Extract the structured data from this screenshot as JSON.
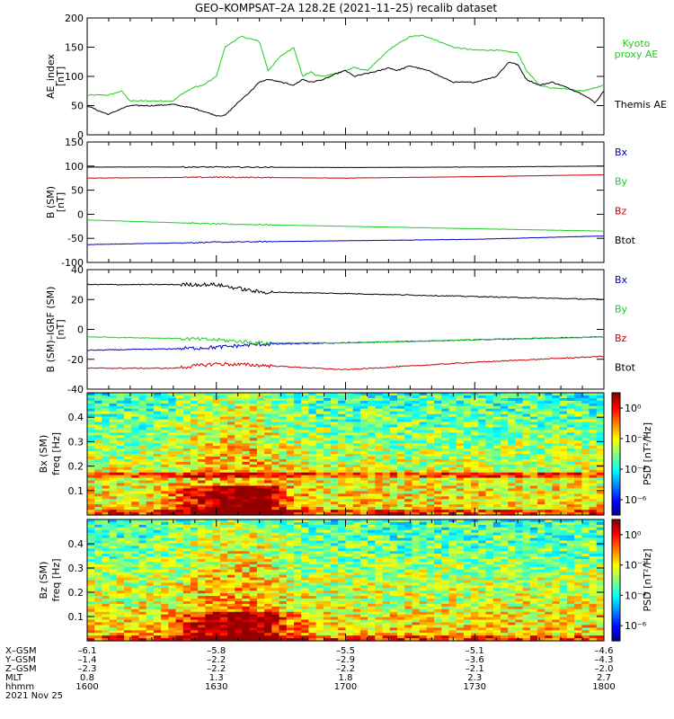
{
  "chart_data": [
    {
      "type": "line",
      "title": "GEO–KOMPSAT–2A 128.2E (2021–11–25) recalib dataset",
      "ylabel": "AE_index",
      "yunit": "[nT]",
      "ylim": [
        0,
        200
      ],
      "yticks": [
        0,
        50,
        100,
        150,
        200
      ],
      "series": [
        {
          "name": "Kyoto proxy AE",
          "color": "#22cc22",
          "x": [
            1600,
            1605,
            1608,
            1610,
            1615,
            1620,
            1622,
            1625,
            1627,
            1630,
            1632,
            1635,
            1636,
            1640,
            1642,
            1645,
            1648,
            1650,
            1652,
            1653,
            1655,
            1700,
            1702,
            1705,
            1708,
            1710,
            1712,
            1715,
            1718,
            1720,
            1725,
            1730,
            1735,
            1740,
            1742,
            1745,
            1748,
            1750,
            1755,
            1800
          ],
          "values": [
            68,
            68,
            75,
            58,
            58,
            58,
            70,
            82,
            85,
            100,
            150,
            165,
            168,
            160,
            110,
            135,
            150,
            100,
            108,
            102,
            100,
            110,
            115,
            110,
            130,
            145,
            155,
            168,
            170,
            165,
            150,
            145,
            145,
            140,
            110,
            85,
            80,
            80,
            75,
            85
          ]
        },
        {
          "name": "Themis AE",
          "color": "#000000",
          "x": [
            1600,
            1603,
            1605,
            1608,
            1610,
            1615,
            1620,
            1625,
            1630,
            1632,
            1635,
            1638,
            1640,
            1642,
            1645,
            1648,
            1650,
            1652,
            1655,
            1658,
            1700,
            1702,
            1705,
            1708,
            1710,
            1712,
            1715,
            1718,
            1720,
            1722,
            1725,
            1730,
            1735,
            1738,
            1740,
            1742,
            1745,
            1748,
            1750,
            1755,
            1758,
            1800
          ],
          "values": [
            50,
            40,
            35,
            45,
            50,
            50,
            52,
            45,
            33,
            33,
            55,
            75,
            90,
            95,
            90,
            85,
            95,
            90,
            95,
            105,
            110,
            100,
            105,
            110,
            115,
            110,
            118,
            112,
            108,
            100,
            90,
            90,
            100,
            125,
            120,
            95,
            85,
            90,
            85,
            70,
            55,
            75
          ]
        }
      ],
      "legend": "right"
    },
    {
      "type": "line",
      "ylabel": "B (SM)",
      "yunit": "[nT]",
      "ylim": [
        -100,
        150
      ],
      "yticks": [
        -100,
        -50,
        0,
        50,
        100,
        150
      ],
      "series": [
        {
          "name": "Bx",
          "color": "#0000cc",
          "x": [
            1600,
            1630,
            1700,
            1730,
            1800
          ],
          "values": [
            -63,
            -58,
            -55,
            -52,
            -45
          ]
        },
        {
          "name": "By",
          "color": "#22cc22",
          "x": [
            1600,
            1630,
            1700,
            1730,
            1800
          ],
          "values": [
            -12,
            -20,
            -25,
            -30,
            -35
          ]
        },
        {
          "name": "Bz",
          "color": "#cc0000",
          "x": [
            1600,
            1630,
            1700,
            1730,
            1800
          ],
          "values": [
            75,
            77,
            75,
            78,
            82
          ]
        },
        {
          "name": "Btot",
          "color": "#000000",
          "x": [
            1600,
            1630,
            1700,
            1730,
            1800
          ],
          "values": [
            98,
            98,
            97,
            98,
            100
          ]
        }
      ],
      "legend": "right"
    },
    {
      "type": "line",
      "ylabel": "B (SM)–IGRF (SM)",
      "yunit": "[nT]",
      "ylim": [
        -40,
        40
      ],
      "yticks": [
        -40,
        -20,
        0,
        20,
        40
      ],
      "series": [
        {
          "name": "Bx",
          "color": "#0000cc",
          "x": [
            1600,
            1620,
            1630,
            1640,
            1700,
            1730,
            1800
          ],
          "values": [
            -14,
            -13,
            -12,
            -10,
            -9,
            -7,
            -5
          ]
        },
        {
          "name": "By",
          "color": "#22cc22",
          "x": [
            1600,
            1620,
            1630,
            1640,
            1700,
            1730,
            1800
          ],
          "values": [
            -5,
            -6,
            -7,
            -9,
            -9,
            -7,
            -5
          ]
        },
        {
          "name": "Bz",
          "color": "#cc0000",
          "x": [
            1600,
            1620,
            1630,
            1640,
            1700,
            1730,
            1800
          ],
          "values": [
            -26,
            -26,
            -23,
            -24,
            -27,
            -22,
            -18
          ]
        },
        {
          "name": "Btot",
          "color": "#000000",
          "x": [
            1600,
            1620,
            1630,
            1640,
            1700,
            1730,
            1800
          ],
          "values": [
            30,
            30,
            30,
            25,
            24,
            22,
            20
          ]
        }
      ],
      "legend": "right"
    },
    {
      "type": "heatmap",
      "ylabel": "Bx (SM)",
      "ylabel2": "freq",
      "yunit": "[Hz]",
      "ylim": [
        0,
        0.5
      ],
      "yticks": [
        0.1,
        0.2,
        0.3,
        0.4
      ],
      "colorbar": {
        "label": "PSD",
        "unit": "[nT²/Hz]",
        "ticks": [
          "10⁰",
          "10⁻²",
          "10⁻⁴",
          "10⁻⁶"
        ],
        "exponents": [
          0,
          -2,
          -4,
          -6
        ],
        "range": [
          -7,
          1
        ]
      }
    },
    {
      "type": "heatmap",
      "ylabel": "Bz (SM)",
      "ylabel2": "freq",
      "yunit": "[Hz]",
      "ylim": [
        0,
        0.5
      ],
      "yticks": [
        0.1,
        0.2,
        0.3,
        0.4
      ],
      "colorbar": {
        "label": "PSD",
        "unit": "[nT²/Hz]",
        "ticks": [
          "10⁰",
          "10⁻²",
          "10⁻⁴",
          "10⁻⁶"
        ],
        "exponents": [
          0,
          -2,
          -4,
          -6
        ],
        "range": [
          -7,
          1
        ]
      }
    }
  ],
  "x_axis": {
    "row_labels": [
      "X–GSM",
      "Y–GSM",
      "Z–GSM",
      "MLT",
      "hhmm"
    ],
    "times": [
      1600,
      1630,
      1700,
      1730,
      1800
    ],
    "rows": [
      [
        "–6.1",
        "–5.8",
        "–5.5",
        "–5.1",
        "–4.6"
      ],
      [
        "–1.4",
        "–2.2",
        "–2.9",
        "–3.6",
        "–4.3"
      ],
      [
        "–2.3",
        "–2.2",
        "–2.2",
        "–2.1",
        "–2.0"
      ],
      [
        "0.8",
        "1.3",
        "1.8",
        "2.3",
        "2.7"
      ],
      [
        "1600",
        "1630",
        "1700",
        "1730",
        "1800"
      ]
    ],
    "date": "2021 Nov 25"
  }
}
